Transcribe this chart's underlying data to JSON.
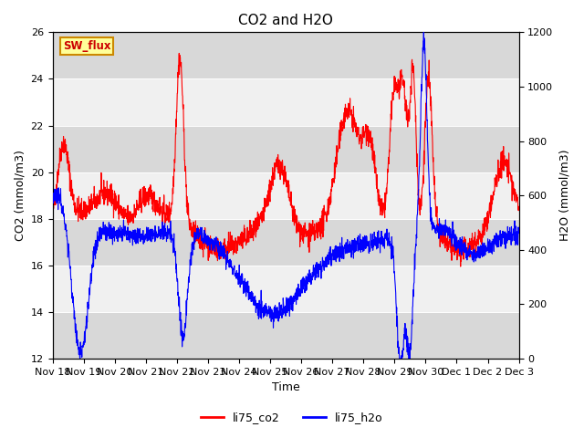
{
  "title": "CO2 and H2O",
  "xlabel": "Time",
  "ylabel_left": "CO2 (mmol/m3)",
  "ylabel_right": "H2O (mmol/m3)",
  "ylim_left": [
    12,
    26
  ],
  "ylim_right": [
    0,
    1200
  ],
  "yticks_left": [
    12,
    14,
    16,
    18,
    20,
    22,
    24,
    26
  ],
  "yticks_right": [
    0,
    200,
    400,
    600,
    800,
    1000,
    1200
  ],
  "xtick_labels": [
    "Nov 18",
    "Nov 19",
    "Nov 20",
    "Nov 21",
    "Nov 22",
    "Nov 23",
    "Nov 24",
    "Nov 25",
    "Nov 26",
    "Nov 27",
    "Nov 28",
    "Nov 29",
    "Nov 30",
    "Dec 1",
    "Dec 2",
    "Dec 3"
  ],
  "legend_labels": [
    "li75_co2",
    "li75_h2o"
  ],
  "line_colors": [
    "red",
    "blue"
  ],
  "sw_flux_label": "SW_flux",
  "sw_flux_color": "#cc0000",
  "sw_flux_bg": "#ffff99",
  "sw_flux_border": "#cc8800",
  "background_color": "#e8e8e8",
  "band_color_light": "#f0f0f0",
  "band_color_dark": "#d8d8d8",
  "grid_color": "white"
}
